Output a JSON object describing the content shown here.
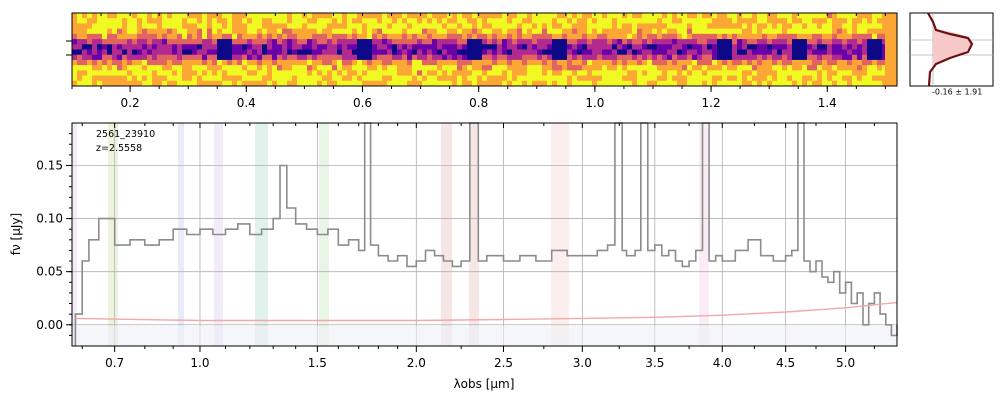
{
  "figure": {
    "object_id": "2561_23910",
    "redshift_label": "z=2.5558",
    "profile_label": "-0.16 ± 1.91"
  },
  "spectrum2d": {
    "type": "heatmap",
    "colormap": "plasma",
    "colors": [
      "#0d0887",
      "#6a00a8",
      "#b12a90",
      "#e16462",
      "#fca636",
      "#f0f921"
    ],
    "xlim": [
      0.1,
      1.52
    ],
    "x_ticks": [
      0.2,
      0.4,
      0.6,
      0.8,
      1.0,
      1.2,
      1.4
    ],
    "x_tick_labels": [
      "0.2",
      "0.4",
      "0.6",
      "0.8",
      "1.0",
      "1.2",
      "1.4"
    ]
  },
  "chart_data": {
    "type": "line",
    "xlabel": "λobs [μm]",
    "ylabel": "fν [μJy]",
    "xlim": [
      0.57,
      5.45
    ],
    "ylim": [
      -0.02,
      0.19
    ],
    "x_scale": "sqrt",
    "y_ticks": [
      0.0,
      0.05,
      0.1,
      0.15
    ],
    "y_tick_labels": [
      "0.00",
      "0.05",
      "0.10",
      "0.15"
    ],
    "x_ticks": [
      0.7,
      1.0,
      1.5,
      2.0,
      2.5,
      3.0,
      3.5,
      4.0,
      4.5,
      5.0
    ],
    "x_tick_labels": [
      "0.7",
      "1.0",
      "1.5",
      "2.0",
      "2.5",
      "3.0",
      "3.5",
      "4.0",
      "4.5",
      "5.0"
    ],
    "grid": true,
    "series": [
      {
        "role": "flux",
        "color": "#8c8c8c",
        "x": [
          0.58,
          0.6,
          0.62,
          0.65,
          0.7,
          0.75,
          0.8,
          0.85,
          0.9,
          0.95,
          1.0,
          1.05,
          1.1,
          1.15,
          1.2,
          1.25,
          1.3,
          1.33,
          1.36,
          1.4,
          1.45,
          1.5,
          1.55,
          1.6,
          1.65,
          1.7,
          1.73,
          1.76,
          1.8,
          1.85,
          1.9,
          1.95,
          2.0,
          2.05,
          2.1,
          2.15,
          2.2,
          2.25,
          2.3,
          2.35,
          2.4,
          2.5,
          2.6,
          2.7,
          2.8,
          2.9,
          3.0,
          3.1,
          3.17,
          3.22,
          3.27,
          3.3,
          3.36,
          3.4,
          3.45,
          3.5,
          3.55,
          3.6,
          3.65,
          3.7,
          3.75,
          3.8,
          3.85,
          3.9,
          3.95,
          4.0,
          4.1,
          4.2,
          4.3,
          4.4,
          4.5,
          4.55,
          4.6,
          4.65,
          4.7,
          4.75,
          4.8,
          4.85,
          4.9,
          4.95,
          5.0,
          5.05,
          5.1,
          5.15,
          5.2,
          5.25,
          5.3,
          5.35,
          5.4,
          5.45
        ],
        "y": [
          0.01,
          0.06,
          0.08,
          0.1,
          0.075,
          0.08,
          0.075,
          0.08,
          0.09,
          0.085,
          0.09,
          0.085,
          0.09,
          0.095,
          0.085,
          0.09,
          0.1,
          0.15,
          0.11,
          0.095,
          0.09,
          0.085,
          0.09,
          0.075,
          0.08,
          0.07,
          0.19,
          0.075,
          0.065,
          0.06,
          0.065,
          0.055,
          0.06,
          0.07,
          0.065,
          0.06,
          0.055,
          0.06,
          0.19,
          0.06,
          0.065,
          0.06,
          0.065,
          0.06,
          0.07,
          0.065,
          0.065,
          0.07,
          0.075,
          0.19,
          0.07,
          0.065,
          0.07,
          0.19,
          0.07,
          0.075,
          0.065,
          0.07,
          0.06,
          0.055,
          0.06,
          0.07,
          0.19,
          0.06,
          0.065,
          0.06,
          0.07,
          0.08,
          0.065,
          0.06,
          0.065,
          0.07,
          0.19,
          0.06,
          0.05,
          0.06,
          0.045,
          0.04,
          0.05,
          0.03,
          0.04,
          0.02,
          0.03,
          0.0,
          0.02,
          0.03,
          0.01,
          0.0,
          -0.01,
          0.0
        ]
      },
      {
        "role": "uncertainty",
        "color": "#f4a8a8",
        "x": [
          0.58,
          1.0,
          1.5,
          2.0,
          2.5,
          3.0,
          3.5,
          4.0,
          4.5,
          5.0,
          5.45
        ],
        "y": [
          0.006,
          0.004,
          0.004,
          0.004,
          0.005,
          0.006,
          0.007,
          0.009,
          0.012,
          0.016,
          0.021
        ]
      }
    ]
  }
}
